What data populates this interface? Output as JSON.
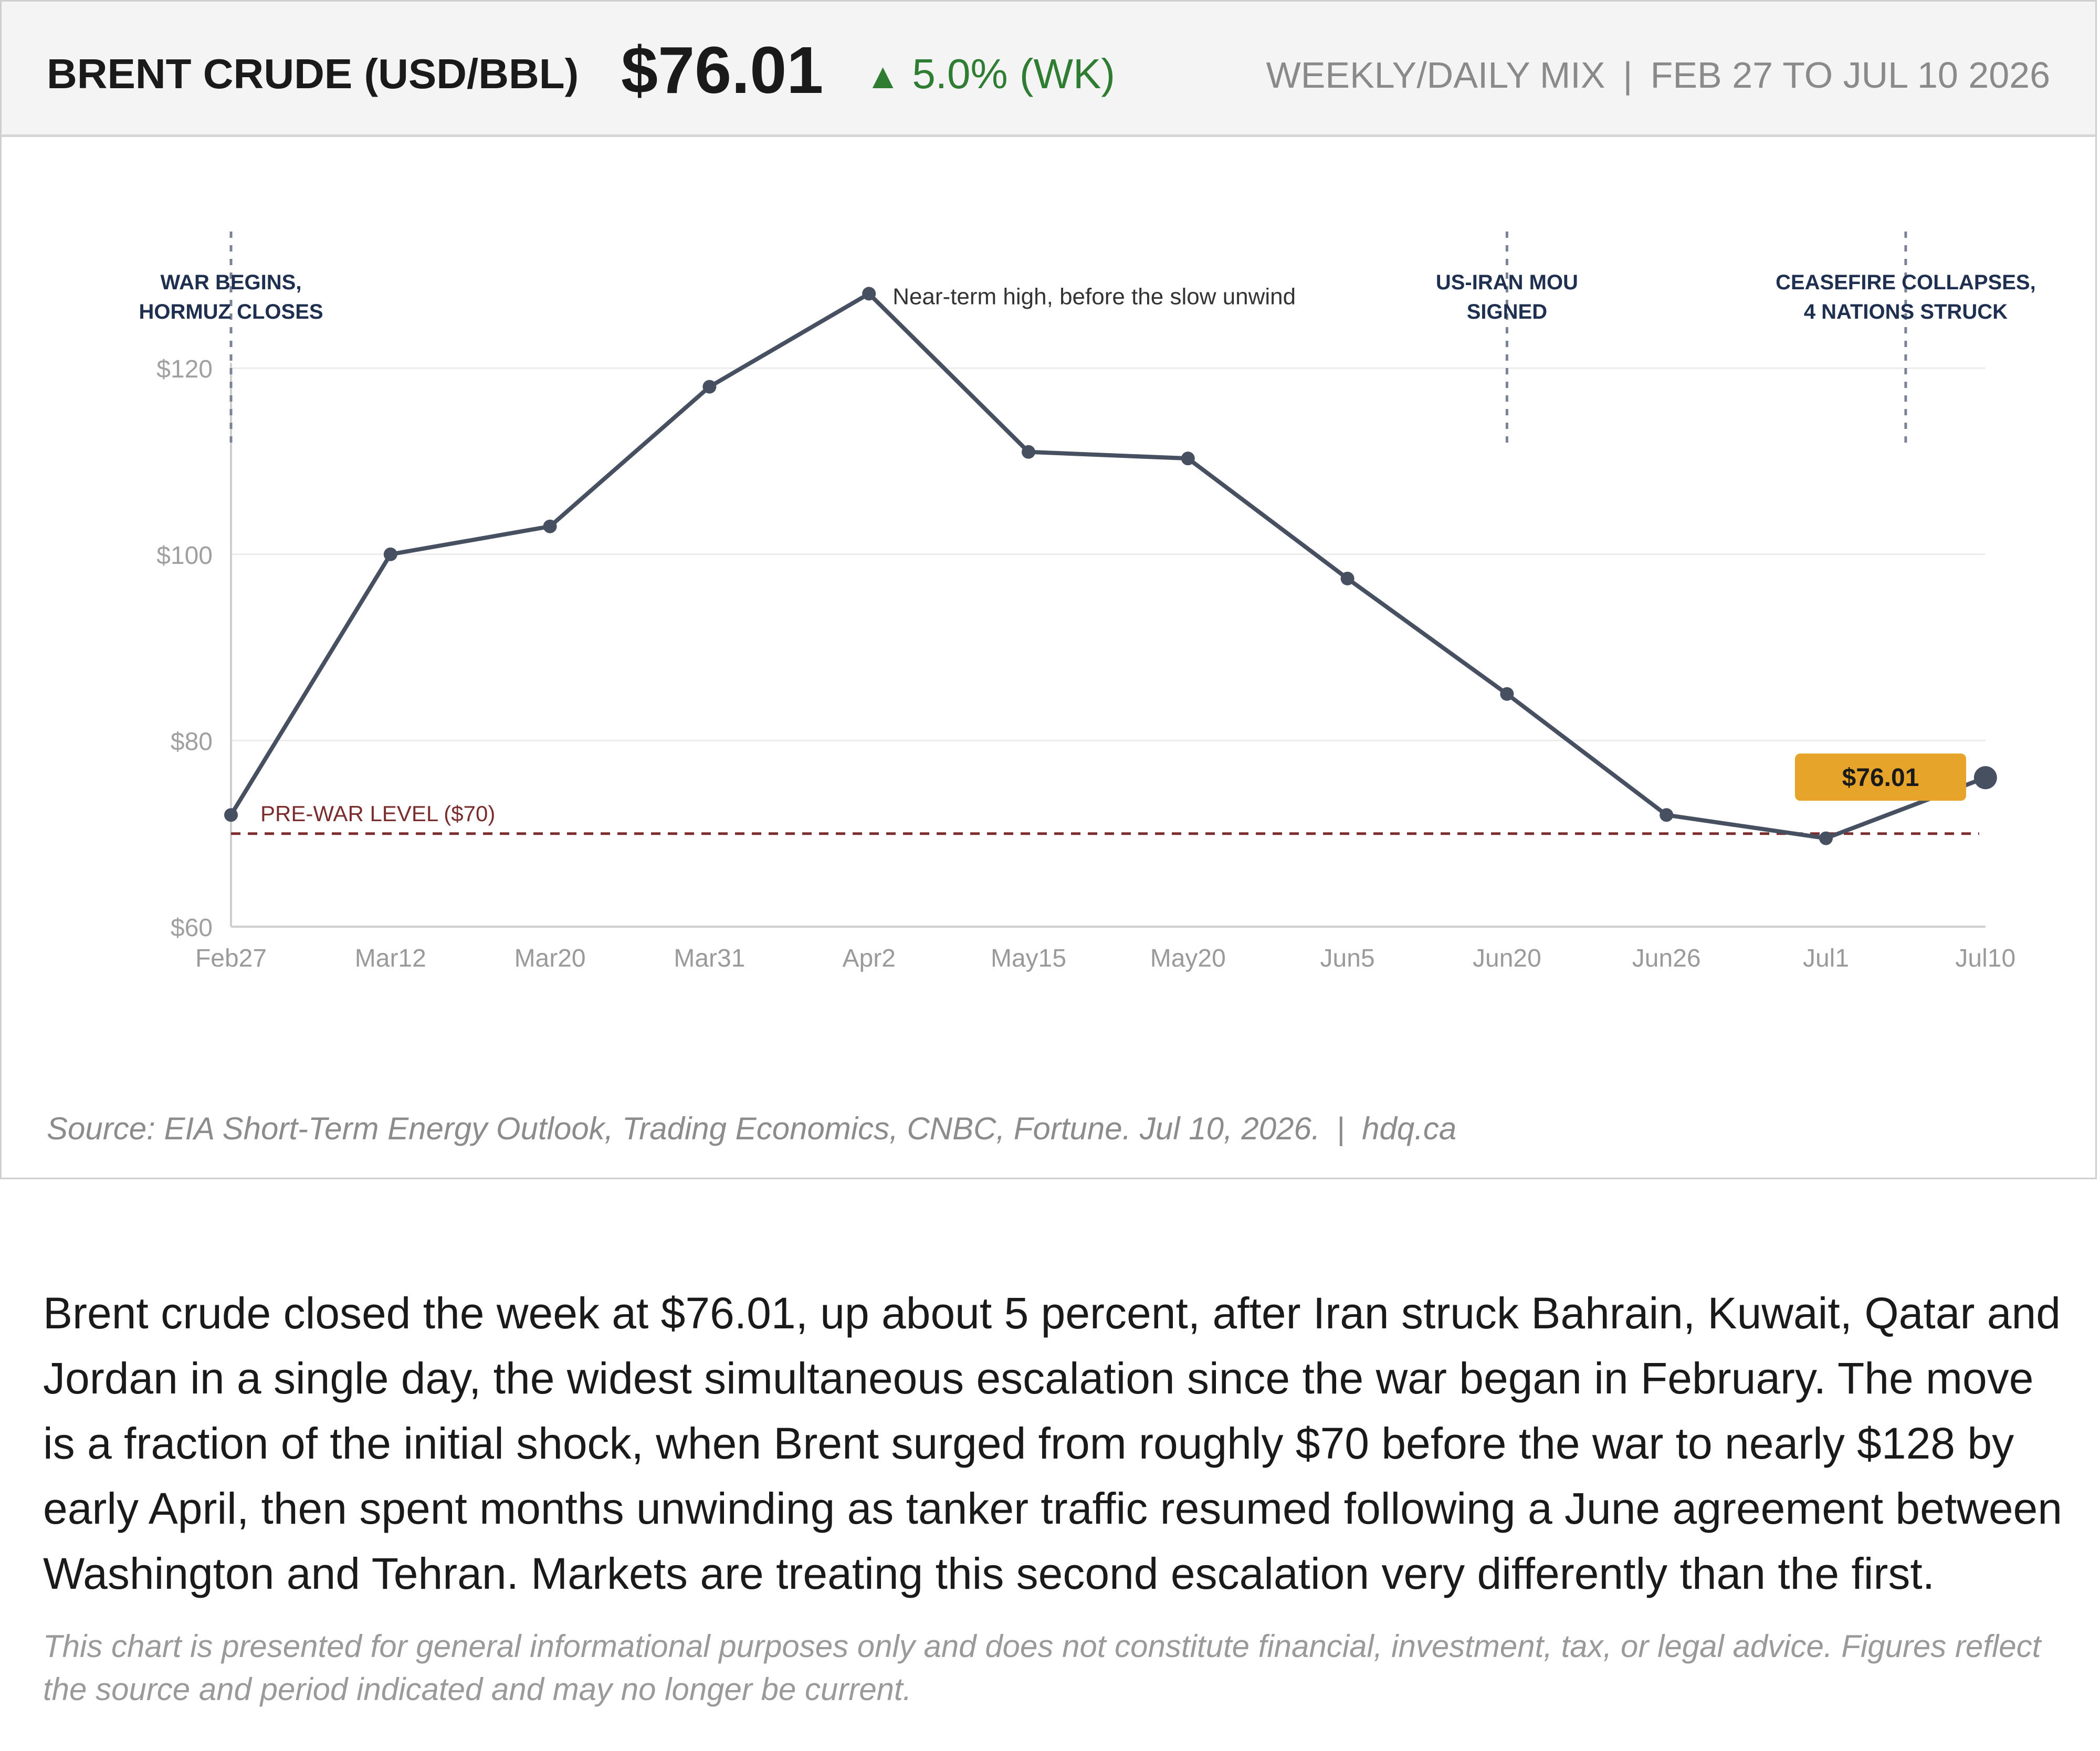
{
  "header": {
    "title": "BRENT CRUDE (USD/BBL)",
    "price": "$76.01",
    "change_arrow": "▲",
    "change": "5.0% (WK)",
    "mix": "WEEKLY/DAILY MIX",
    "separator": "|",
    "range": "FEB 27 TO JUL 10 2026"
  },
  "colors": {
    "line": "#475061",
    "pre_war_line": "#7b2d2d",
    "event_line": "#7a8296",
    "event_text": "#1f2f4f",
    "price_badge": "#e6a52a",
    "change_up": "#2e7d32"
  },
  "chart_data": {
    "type": "line",
    "categories": [
      "Feb27",
      "Mar12",
      "Mar20",
      "Mar31",
      "Apr2",
      "May15",
      "May20",
      "Jun5",
      "Jun20",
      "Jun26",
      "Jul1",
      "Jul10"
    ],
    "series": [
      {
        "values": [
          72,
          100,
          103,
          118,
          128,
          111,
          110.3,
          97.4,
          85,
          72,
          69.5,
          76.01
        ]
      }
    ],
    "y_ticks": [
      "$60",
      "$80",
      "$100",
      "$120"
    ],
    "ylim": [
      60,
      130
    ],
    "grid": true,
    "reference_line": {
      "value": 70,
      "label": "PRE-WAR LEVEL ($70)"
    },
    "events": [
      {
        "category": "Feb27",
        "lines": [
          "WAR BEGINS,",
          "HORMUZ CLOSES"
        ]
      },
      {
        "category": "Jun20",
        "lines": [
          "US-IRAN MOU",
          "SIGNED"
        ]
      },
      {
        "category": "Jul1",
        "offset": 0.5,
        "lines": [
          "CEASEFIRE COLLAPSES,",
          "4 NATIONS STRUCK"
        ]
      }
    ],
    "peak_annotation": {
      "category": "Apr2",
      "text": "Near-term high, before the slow unwind"
    },
    "last_value_label": "$76.01"
  },
  "source": {
    "text": "Source: EIA Short-Term Energy Outlook, Trading Economics, CNBC, Fortune. Jul 10, 2026.",
    "separator": "|",
    "site": "hdq.ca"
  },
  "paragraph": "Brent crude closed the week at $76.01, up about 5 percent, after Iran struck Bahrain, Kuwait, Qatar and Jordan in a single day, the widest simultaneous escalation since the war began in February. The move is a fraction of the initial shock, when Brent surged from roughly $70 before the war to nearly $128 by early April, then spent months unwinding as tanker traffic resumed following a June agreement between Washington and Tehran. Markets are treating this second escalation very differently than the first.",
  "disclaimer": "This chart is presented for general informational purposes only and does not constitute financial, investment, tax, or legal advice. Figures reflect the source and period indicated and may no longer be current."
}
